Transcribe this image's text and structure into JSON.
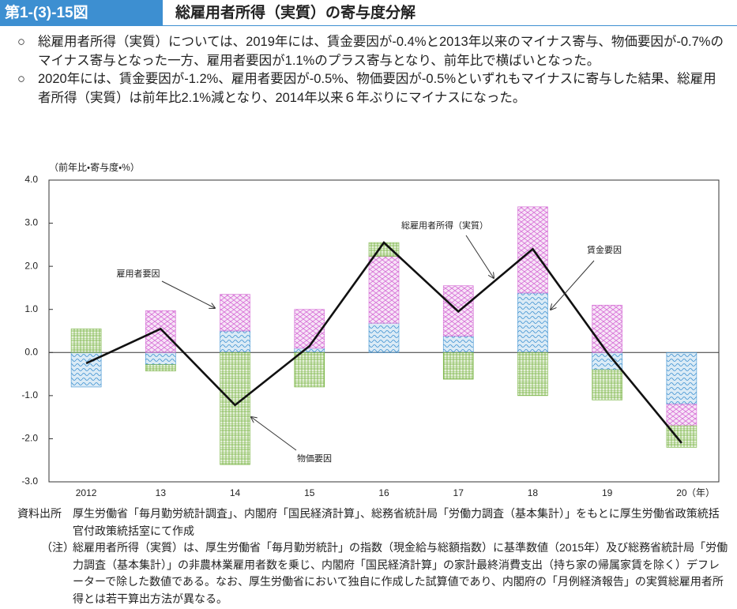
{
  "header": {
    "figure_number": "第1-(3)-15図",
    "title": "総雇用者所得（実質）の寄与度分解"
  },
  "bullets": [
    {
      "mark": "○",
      "text": "総雇用者所得（実質）については、2019年には、賃金要因が-0.4%と2013年以来のマイナス寄与、物価要因が-0.7%のマイナス寄与となった一方、雇用者要因が1.1%のプラス寄与となり、前年比で横ばいとなった。"
    },
    {
      "mark": "○",
      "text": "2020年には、賃金要因が-1.2%、雇用者要因が-0.5%、物価要因が-0.5%といずれもマイナスに寄与した結果、総雇用者所得（実質）は前年比2.1%減となり、2014年以来６年ぶりにマイナスになった。"
    }
  ],
  "chart_data": {
    "type": "bar",
    "ylabel": "（前年比・寄与度・%）",
    "xlabel": "（年）",
    "categories": [
      "2012",
      "13",
      "14",
      "15",
      "16",
      "17",
      "18",
      "19",
      "20"
    ],
    "ylim": [
      -3,
      4
    ],
    "yticks": [
      {
        "value": -3,
        "label": "-3.0"
      },
      {
        "value": -2,
        "label": "-2.0"
      },
      {
        "value": -1,
        "label": "-1.0"
      },
      {
        "value": 0,
        "label": "0.0"
      },
      {
        "value": 1,
        "label": "1.0"
      },
      {
        "value": 2,
        "label": "2.0"
      },
      {
        "value": 3,
        "label": "3.0"
      },
      {
        "value": 4,
        "label": "4.0"
      }
    ],
    "series": [
      {
        "name": "賃金要因",
        "type": "bar",
        "color": "#3a8fd0",
        "values": [
          -0.8,
          -0.28,
          0.5,
          0.1,
          0.68,
          0.38,
          1.38,
          -0.4,
          -1.2
        ]
      },
      {
        "name": "雇用者要因",
        "type": "bar",
        "color": "#d46ad4",
        "values": [
          0,
          0.97,
          0.85,
          0.9,
          1.55,
          1.17,
          2.0,
          1.1,
          -0.5
        ]
      },
      {
        "name": "物価要因",
        "type": "bar",
        "color": "#79b443",
        "values": [
          0.55,
          -0.15,
          -2.6,
          -0.8,
          0.32,
          -0.62,
          -1.0,
          -0.7,
          -0.5
        ]
      },
      {
        "name": "総雇用者所得（実質）",
        "type": "line",
        "color": "#111111",
        "values": [
          -0.25,
          0.55,
          -1.22,
          0.15,
          2.55,
          0.95,
          2.4,
          0.0,
          -2.1
        ]
      }
    ]
  },
  "source": {
    "label": "資料出所",
    "text": "厚生労働省「毎月勤労統計調査」、内閣府「国民経済計算」、総務省統計局「労働力調査（基本集計）」をもとに厚生労働省政策統括官付政策統括室にて作成"
  },
  "note": {
    "label": "（注）",
    "text": "総雇用者所得（実質）は、厚生労働省「毎月勤労統計」の指数（現金給与総額指数）に基準数値（2015年）及び総務省統計局「労働力調査（基本集計）」の非農林業雇用者数を乗じ、内閣府「国民経済計算」の家計最終消費支出（持ち家の帰属家賃を除く）デフレーターで除した数値である。なお、厚生労働省において独自に作成した試算値であり、内閣府の「月例経済報告」の実質総雇用者所得とは若干算出方法が異なる。"
  }
}
